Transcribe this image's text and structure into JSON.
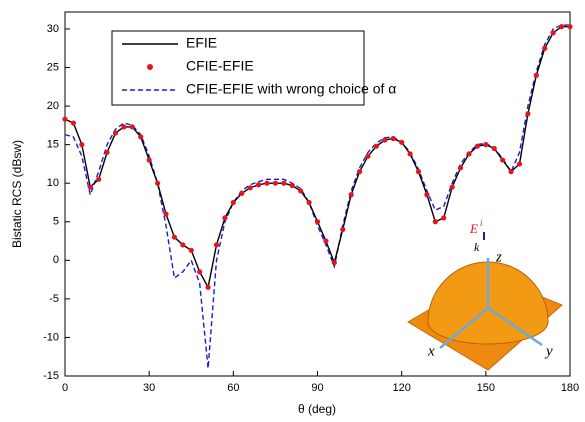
{
  "chart_data": {
    "type": "line",
    "xlabel": "θ (deg)",
    "ylabel": "Bistatic RCS (dBsw)",
    "x": [
      0,
      3,
      6,
      9,
      12,
      15,
      18,
      21,
      24,
      27,
      30,
      33,
      36,
      39,
      42,
      45,
      48,
      51,
      54,
      57,
      60,
      63,
      66,
      69,
      72,
      75,
      78,
      81,
      84,
      87,
      90,
      93,
      96,
      99,
      102,
      105,
      108,
      111,
      114,
      117,
      120,
      123,
      126,
      129,
      132,
      135,
      138,
      141,
      144,
      147,
      150,
      153,
      156,
      159,
      162,
      165,
      168,
      171,
      174,
      177,
      180
    ],
    "series": [
      {
        "name": "EFIE",
        "color": "#000000",
        "style": "solid",
        "values": [
          18.3,
          17.8,
          15,
          9.5,
          10.5,
          14,
          16.5,
          17.3,
          17.3,
          16,
          13,
          10,
          6,
          3,
          2,
          1.3,
          -1.5,
          -3.5,
          2,
          5.5,
          7.5,
          8.7,
          9.4,
          9.8,
          10,
          10,
          10,
          9.7,
          9,
          7.5,
          5,
          2.5,
          -0.3,
          4,
          8.5,
          11.5,
          13.5,
          14.8,
          15.6,
          15.8,
          15.3,
          13.8,
          11.5,
          8.5,
          5,
          5.5,
          9.5,
          12,
          13.8,
          14.8,
          15,
          14.5,
          13,
          11.5,
          12.5,
          19,
          24,
          27.5,
          29.5,
          30.3,
          30.3
        ]
      },
      {
        "name": "CFIE-EFIE",
        "color": "#e8141c",
        "style": "dots",
        "values": [
          18.3,
          17.8,
          15,
          9.5,
          10.5,
          14,
          16.5,
          17.3,
          17.3,
          16,
          13,
          10,
          6,
          3,
          2,
          1.3,
          -1.5,
          -3.5,
          2,
          5.5,
          7.5,
          8.7,
          9.4,
          9.8,
          10,
          10,
          10,
          9.7,
          9,
          7.5,
          5,
          2.5,
          -0.3,
          4,
          8.5,
          11.5,
          13.5,
          14.8,
          15.6,
          15.8,
          15.3,
          13.8,
          11.5,
          8.5,
          5,
          5.5,
          9.5,
          12,
          13.8,
          14.8,
          15,
          14.5,
          13,
          11.5,
          12.5,
          19,
          24,
          27.5,
          29.5,
          30.3,
          30.3
        ]
      },
      {
        "name": "CFIE-EFIE with wrong choice of α",
        "color": "#1a1ad6",
        "style": "dashed",
        "values": [
          16.3,
          16,
          13.5,
          8.5,
          11.5,
          15,
          17,
          17.8,
          17.5,
          16.3,
          13.5,
          10,
          4.5,
          -2.3,
          -1.5,
          0,
          -3,
          -14,
          0,
          5,
          7.5,
          9,
          9.8,
          10.2,
          10.5,
          10.5,
          10.5,
          10,
          9.3,
          7.5,
          4.5,
          2,
          -0.8,
          4.5,
          9,
          12,
          14,
          15.2,
          15.9,
          16,
          15.3,
          14,
          11.8,
          9,
          6.5,
          7,
          10,
          12.5,
          14,
          15,
          15.2,
          14.5,
          13.2,
          11.5,
          14,
          20,
          24.5,
          28,
          30,
          30.5,
          30.5
        ]
      }
    ],
    "xlim": [
      0,
      180
    ],
    "xticks": [
      0,
      30,
      60,
      90,
      120,
      150,
      180
    ],
    "ylim": [
      -15,
      32.2
    ],
    "yticks": [
      -15,
      -10,
      -5,
      0,
      5,
      10,
      15,
      20,
      25,
      30
    ],
    "grid": false,
    "legend": "upper left",
    "annotations": [
      "z",
      "x",
      "y",
      "k",
      "E",
      "i"
    ]
  }
}
